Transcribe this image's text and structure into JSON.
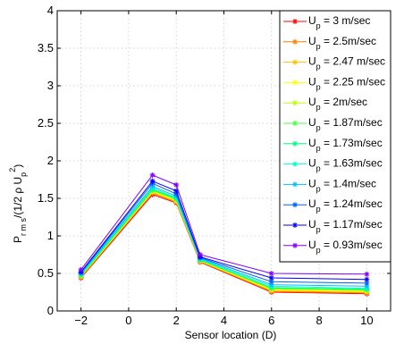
{
  "chart_data": {
    "type": "line",
    "title": "",
    "xlabel": "Sensor location (D)",
    "ylabel": {
      "main": "P",
      "sub": "r m s",
      "rest": "/(1/2 ρ U",
      "sub2": "p",
      "sup": "2",
      "close": ")"
    },
    "xlim": [
      -3,
      11
    ],
    "ylim": [
      0,
      4
    ],
    "xticks": [
      "−2",
      "0",
      "2",
      "4",
      "6",
      "8",
      "10"
    ],
    "xtick_values": [
      -2,
      0,
      2,
      4,
      6,
      8,
      10
    ],
    "yticks": [
      "0",
      "0.5",
      "1",
      "1.5",
      "2",
      "2.5",
      "3",
      "3.5",
      "4"
    ],
    "ytick_values": [
      0,
      0.5,
      1,
      1.5,
      2,
      2.5,
      3,
      3.5,
      4
    ],
    "grid": true,
    "legend_position": "top-right",
    "x": [
      -2,
      1,
      2,
      3,
      6,
      10
    ],
    "series": [
      {
        "label": {
          "main": "U",
          "sub": "p",
          "rest": " = 3 m/sec"
        },
        "color": "#ff0000",
        "values": [
          0.44,
          1.55,
          1.44,
          0.65,
          0.25,
          0.23
        ]
      },
      {
        "label": {
          "main": "U",
          "sub": "p",
          "rest": " = 2.5m/sec"
        },
        "color": "#ff7f00",
        "values": [
          0.45,
          1.57,
          1.45,
          0.66,
          0.26,
          0.24
        ]
      },
      {
        "label": {
          "main": "U",
          "sub": "p",
          "rest": " = 2.47 m/sec"
        },
        "color": "#ffbf00",
        "values": [
          0.46,
          1.58,
          1.46,
          0.66,
          0.27,
          0.25
        ]
      },
      {
        "label": {
          "main": "U",
          "sub": "p",
          "rest": " = 2.25 m/sec"
        },
        "color": "#ffff00",
        "values": [
          0.46,
          1.59,
          1.47,
          0.67,
          0.28,
          0.26
        ]
      },
      {
        "label": {
          "main": "U",
          "sub": "p",
          "rest": " = 2m/sec"
        },
        "color": "#bfff00",
        "values": [
          0.47,
          1.6,
          1.48,
          0.67,
          0.29,
          0.27
        ]
      },
      {
        "label": {
          "main": "U",
          "sub": "p",
          "rest": " = 1.87m/sec"
        },
        "color": "#40ff40",
        "values": [
          0.47,
          1.61,
          1.49,
          0.68,
          0.3,
          0.28
        ]
      },
      {
        "label": {
          "main": "U",
          "sub": "p",
          "rest": " = 1.73m/sec"
        },
        "color": "#00ff80",
        "values": [
          0.48,
          1.62,
          1.5,
          0.68,
          0.31,
          0.29
        ]
      },
      {
        "label": {
          "main": "U",
          "sub": "p",
          "rest": " = 1.63m/sec"
        },
        "color": "#00ffd0",
        "values": [
          0.49,
          1.64,
          1.51,
          0.69,
          0.33,
          0.3
        ]
      },
      {
        "label": {
          "main": "U",
          "sub": "p",
          "rest": " = 1.4m/sec"
        },
        "color": "#00bfff",
        "values": [
          0.5,
          1.66,
          1.53,
          0.7,
          0.35,
          0.33
        ]
      },
      {
        "label": {
          "main": "U",
          "sub": "p",
          "rest": " = 1.24m/sec"
        },
        "color": "#0060ff",
        "values": [
          0.51,
          1.7,
          1.56,
          0.71,
          0.39,
          0.37
        ]
      },
      {
        "label": {
          "main": "U",
          "sub": "p",
          "rest": " = 1.17m/sec"
        },
        "color": "#0000ff",
        "values": [
          0.52,
          1.73,
          1.6,
          0.72,
          0.44,
          0.42
        ]
      },
      {
        "label": {
          "main": "U",
          "sub": "p",
          "rest": " = 0.93m/sec"
        },
        "color": "#8000ff",
        "values": [
          0.55,
          1.81,
          1.68,
          0.75,
          0.5,
          0.49
        ]
      }
    ]
  }
}
